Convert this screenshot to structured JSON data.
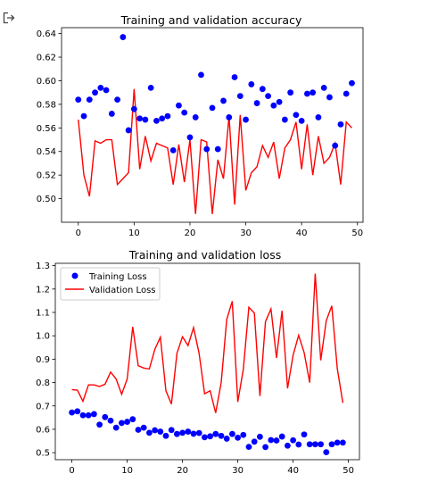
{
  "ui": {
    "output_icon": "output-arrow-icon"
  },
  "chart_data": [
    {
      "type": "scatter+line",
      "title": "Training and validation accuracy",
      "xlim": [
        -3,
        51
      ],
      "ylim": [
        0.48,
        0.645
      ],
      "xticks": [
        0,
        10,
        20,
        30,
        40,
        50
      ],
      "yticks": [
        0.5,
        0.52,
        0.54,
        0.56,
        0.58,
        0.6,
        0.62,
        0.64
      ],
      "ytick_labels": [
        "0.50",
        "0.52",
        "0.54",
        "0.56",
        "0.58",
        "0.60",
        "0.62",
        "0.64"
      ],
      "grid": false,
      "series": [
        {
          "style": "dots",
          "color": "#0000ff",
          "x": [
            0,
            1,
            2,
            3,
            4,
            5,
            6,
            7,
            8,
            9,
            10,
            11,
            12,
            13,
            14,
            15,
            16,
            17,
            18,
            19,
            20,
            21,
            22,
            23,
            24,
            25,
            26,
            27,
            28,
            29,
            30,
            31,
            32,
            33,
            34,
            35,
            36,
            37,
            38,
            39,
            40,
            41,
            42,
            43,
            44,
            45,
            46,
            47,
            48,
            49
          ],
          "y": [
            0.584,
            0.57,
            0.584,
            0.59,
            0.594,
            0.592,
            0.572,
            0.584,
            0.637,
            0.558,
            0.576,
            0.568,
            0.567,
            0.594,
            0.566,
            0.568,
            0.57,
            0.541,
            0.579,
            0.573,
            0.552,
            0.569,
            0.605,
            0.542,
            0.577,
            0.542,
            0.583,
            0.569,
            0.603,
            0.587,
            0.567,
            0.597,
            0.581,
            0.593,
            0.587,
            0.579,
            0.582,
            0.567,
            0.59,
            0.571,
            0.566,
            0.589,
            0.59,
            0.569,
            0.594,
            0.586,
            0.545,
            0.563,
            0.589,
            0.598
          ]
        },
        {
          "style": "line",
          "color": "#ff0000",
          "x": [
            0,
            1,
            2,
            3,
            4,
            5,
            6,
            7,
            8,
            9,
            10,
            11,
            12,
            13,
            14,
            15,
            16,
            17,
            18,
            19,
            20,
            21,
            22,
            23,
            24,
            25,
            26,
            27,
            28,
            29,
            30,
            31,
            32,
            33,
            34,
            35,
            36,
            37,
            38,
            39,
            40,
            41,
            42,
            43,
            44,
            45,
            46,
            47,
            48,
            49
          ],
          "y": [
            0.567,
            0.52,
            0.502,
            0.549,
            0.547,
            0.55,
            0.55,
            0.512,
            0.517,
            0.522,
            0.593,
            0.525,
            0.553,
            0.532,
            0.547,
            0.545,
            0.543,
            0.512,
            0.546,
            0.514,
            0.55,
            0.487,
            0.55,
            0.548,
            0.487,
            0.533,
            0.517,
            0.57,
            0.495,
            0.571,
            0.507,
            0.522,
            0.527,
            0.545,
            0.535,
            0.548,
            0.517,
            0.543,
            0.55,
            0.565,
            0.525,
            0.563,
            0.52,
            0.553,
            0.53,
            0.535,
            0.547,
            0.512,
            0.565,
            0.56
          ]
        }
      ]
    },
    {
      "type": "scatter+line",
      "title": "Training and validation loss",
      "xlim": [
        -3,
        52
      ],
      "ylim": [
        0.47,
        1.31
      ],
      "xticks": [
        0,
        10,
        20,
        30,
        40,
        50
      ],
      "yticks": [
        0.5,
        0.6,
        0.7,
        0.8,
        0.9,
        1.0,
        1.1,
        1.2,
        1.3
      ],
      "ytick_labels": [
        "0.5",
        "0.6",
        "0.7",
        "0.8",
        "0.9",
        "1.0",
        "1.1",
        "1.2",
        "1.3"
      ],
      "grid": false,
      "legend_position": "top-left",
      "series": [
        {
          "name": "Training Loss",
          "style": "dots",
          "color": "#0000ff",
          "x": [
            0,
            1,
            2,
            3,
            4,
            5,
            6,
            7,
            8,
            9,
            10,
            11,
            12,
            13,
            14,
            15,
            16,
            17,
            18,
            19,
            20,
            21,
            22,
            23,
            24,
            25,
            26,
            27,
            28,
            29,
            30,
            31,
            32,
            33,
            34,
            35,
            36,
            37,
            38,
            39,
            40,
            41,
            42,
            43,
            44,
            45,
            46,
            47,
            48,
            49
          ],
          "y": [
            0.672,
            0.677,
            0.66,
            0.66,
            0.665,
            0.62,
            0.652,
            0.637,
            0.607,
            0.627,
            0.632,
            0.643,
            0.598,
            0.607,
            0.585,
            0.596,
            0.59,
            0.572,
            0.597,
            0.58,
            0.585,
            0.59,
            0.581,
            0.584,
            0.566,
            0.57,
            0.58,
            0.572,
            0.56,
            0.58,
            0.564,
            0.576,
            0.525,
            0.547,
            0.568,
            0.524,
            0.554,
            0.552,
            0.569,
            0.53,
            0.553,
            0.535,
            0.578,
            0.536,
            0.536,
            0.536,
            0.502,
            0.536,
            0.543,
            0.543
          ]
        },
        {
          "name": "Validation Loss",
          "style": "line",
          "color": "#ff0000",
          "x": [
            0,
            1,
            2,
            3,
            4,
            5,
            6,
            7,
            8,
            9,
            10,
            11,
            12,
            13,
            14,
            15,
            16,
            17,
            18,
            19,
            20,
            21,
            22,
            23,
            24,
            25,
            26,
            27,
            28,
            29,
            30,
            31,
            32,
            33,
            34,
            35,
            36,
            37,
            38,
            39,
            40,
            41,
            42,
            43,
            44,
            45,
            46,
            47,
            48,
            49
          ],
          "y": [
            0.77,
            0.767,
            0.72,
            0.79,
            0.79,
            0.783,
            0.793,
            0.845,
            0.815,
            0.75,
            0.815,
            1.038,
            0.872,
            0.862,
            0.858,
            0.942,
            0.994,
            0.765,
            0.708,
            0.925,
            0.996,
            0.958,
            1.035,
            0.925,
            0.752,
            0.765,
            0.67,
            0.8,
            1.07,
            1.148,
            0.717,
            0.857,
            1.122,
            1.097,
            0.742,
            1.06,
            1.115,
            0.905,
            1.107,
            0.775,
            0.917,
            1.002,
            0.928,
            0.8,
            1.266,
            0.895,
            1.065,
            1.128,
            0.858,
            0.713
          ]
        }
      ]
    }
  ]
}
